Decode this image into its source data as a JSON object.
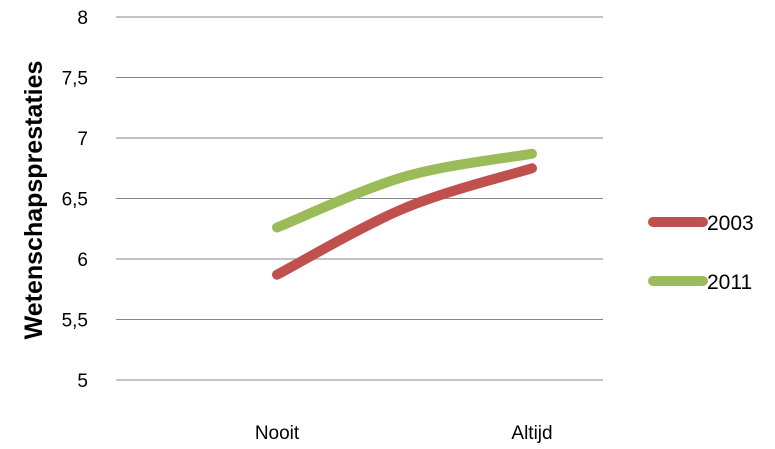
{
  "chart_data": {
    "type": "line",
    "categories": [
      "Nooit",
      "Altijd"
    ],
    "ylabel": "Wetenschapsprestaties",
    "xlabel": "",
    "ylim": [
      5,
      8
    ],
    "yticks": [
      "5",
      "5,5",
      "6",
      "6,5",
      "7",
      "7,5",
      "8"
    ],
    "grid": true,
    "legend": "right",
    "series": [
      {
        "name": "2003",
        "color": "#c0504d",
        "x": [
          0,
          0.5,
          1
        ],
        "values": [
          5.87,
          6.42,
          6.75
        ]
      },
      {
        "name": "2011",
        "color": "#9bbb59",
        "x": [
          0,
          0.5,
          1
        ],
        "values": [
          6.26,
          6.68,
          6.87
        ]
      }
    ]
  }
}
